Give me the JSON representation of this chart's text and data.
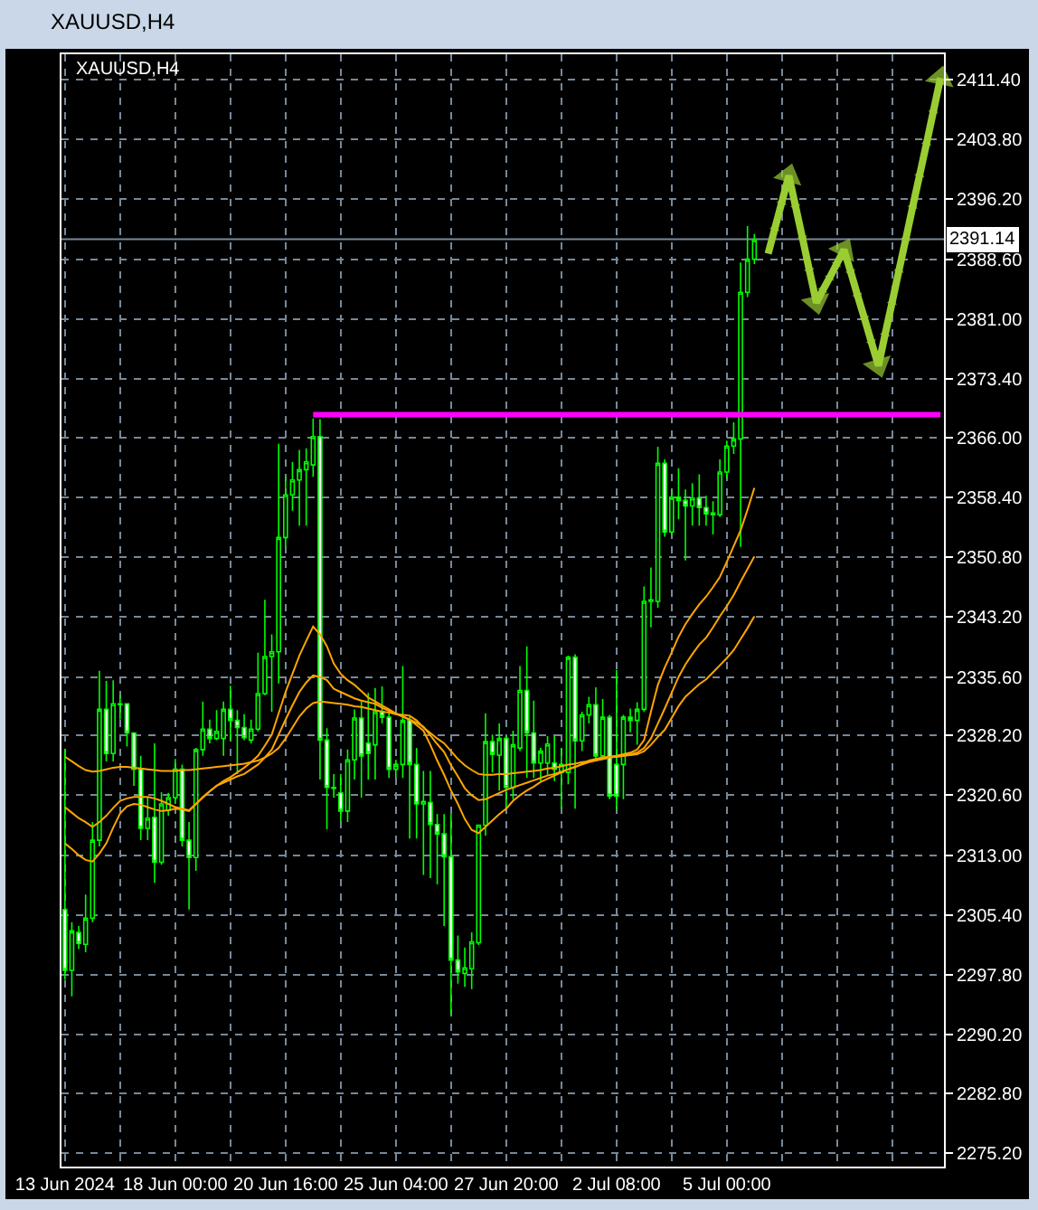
{
  "chart_data": {
    "type": "candlestick",
    "title": "XAUUSD,H4",
    "subtitle": "XAUUSD,H4",
    "categories": [
      "13 Jun 2024",
      null,
      null,
      null,
      null,
      null,
      null,
      null,
      null,
      null,
      null,
      null,
      null,
      null,
      null,
      null,
      "18 Jun 00:00",
      null,
      null,
      null,
      null,
      null,
      null,
      null,
      null,
      null,
      null,
      null,
      null,
      null,
      null,
      null,
      "20 Jun 16:00",
      null,
      null,
      null,
      null,
      null,
      null,
      null,
      null,
      null,
      null,
      null,
      null,
      null,
      null,
      null,
      "25 Jun 04:00",
      null,
      null,
      null,
      null,
      null,
      null,
      null,
      null,
      null,
      null,
      null,
      null,
      null,
      null,
      null,
      "27 Jun 20:00",
      null,
      null,
      null,
      null,
      null,
      null,
      null,
      null,
      null,
      null,
      null,
      null,
      null,
      null,
      null,
      "2 Jul 08:00",
      null,
      null,
      null,
      null,
      null,
      null,
      null,
      null,
      null,
      null,
      null,
      null,
      null,
      null,
      null,
      "5 Jul 00:00",
      null,
      null,
      null,
      null,
      null,
      null,
      null,
      null,
      null,
      null,
      null,
      null,
      null,
      null,
      null,
      null,
      null,
      null,
      null,
      null,
      null,
      null,
      null,
      null,
      null,
      null,
      null,
      null,
      null,
      null,
      null
    ],
    "ohlc": [
      [
        2306.1,
        2326.4,
        2297.2,
        2298.4
      ],
      [
        2298.4,
        2304.5,
        2295.1,
        2303.4
      ],
      [
        2303.2,
        2304.0,
        2301.1,
        2301.8
      ],
      [
        2301.7,
        2308.0,
        2300.7,
        2305.0
      ],
      [
        2305.0,
        2317.2,
        2304.5,
        2314.9
      ],
      [
        2314.9,
        2336.4,
        2314.1,
        2331.5
      ],
      [
        2331.5,
        2335.1,
        2324.9,
        2325.9
      ],
      [
        2325.9,
        2335.2,
        2324.9,
        2332.2
      ],
      [
        2332.1,
        2333.3,
        2330.2,
        2332.2
      ],
      [
        2332.2,
        2332.3,
        2326.8,
        2328.5
      ],
      [
        2328.5,
        2328.6,
        2321.8,
        2323.9
      ],
      [
        2323.9,
        2325.6,
        2314.9,
        2316.4
      ],
      [
        2316.4,
        2320.3,
        2314.9,
        2317.7
      ],
      [
        2317.8,
        2327.2,
        2309.5,
        2312.1
      ],
      [
        2312.1,
        2321.0,
        2311.8,
        2319.5
      ],
      [
        2318.7,
        2320.9,
        2318.0,
        2320.3
      ],
      [
        2320.3,
        2325.2,
        2319.5,
        2323.9
      ],
      [
        2323.9,
        2324.5,
        2314.1,
        2314.9
      ],
      [
        2314.9,
        2317.2,
        2306.1,
        2312.7
      ],
      [
        2312.7,
        2326.6,
        2311.0,
        2326.4
      ],
      [
        2326.4,
        2332.5,
        2325.6,
        2329.0
      ],
      [
        2329.0,
        2330.2,
        2327.2,
        2327.8
      ],
      [
        2327.8,
        2331.4,
        2327.6,
        2328.7
      ],
      [
        2327.8,
        2332.5,
        2325.6,
        2331.5
      ],
      [
        2331.5,
        2334.5,
        2327.6,
        2330.1
      ],
      [
        2330.1,
        2331.4,
        2323.3,
        2329.2
      ],
      [
        2329.2,
        2330.9,
        2327.6,
        2327.9
      ],
      [
        2327.6,
        2330.2,
        2327.2,
        2329.0
      ],
      [
        2329.0,
        2338.7,
        2328.7,
        2333.5
      ],
      [
        2333.5,
        2345.4,
        2333.3,
        2338.2
      ],
      [
        2338.2,
        2341.0,
        2331.2,
        2338.8
      ],
      [
        2338.8,
        2365.2,
        2334.8,
        2353.3
      ],
      [
        2353.3,
        2361.0,
        2352.1,
        2358.7
      ],
      [
        2358.7,
        2362.9,
        2356.7,
        2360.6
      ],
      [
        2360.6,
        2364.4,
        2354.8,
        2361.9
      ],
      [
        2361.9,
        2364.6,
        2354.8,
        2362.9
      ],
      [
        2362.5,
        2368.4,
        2361.0,
        2366.1
      ],
      [
        2366.1,
        2368.3,
        2322.6,
        2327.6
      ],
      [
        2327.6,
        2329.1,
        2316.3,
        2321.6
      ],
      [
        2321.5,
        2323.3,
        2320.3,
        2321.6
      ],
      [
        2320.9,
        2323.3,
        2317.2,
        2318.6
      ],
      [
        2318.6,
        2326.4,
        2317.2,
        2325.1
      ],
      [
        2325.1,
        2331.5,
        2322.6,
        2330.4
      ],
      [
        2330.4,
        2332.5,
        2320.3,
        2325.6
      ],
      [
        2327.2,
        2333.6,
        2322.6,
        2325.9
      ],
      [
        2327.0,
        2334.2,
        2322.6,
        2331.2
      ],
      [
        2331.2,
        2334.4,
        2329.7,
        2330.5
      ],
      [
        2330.5,
        2331.1,
        2322.8,
        2323.9
      ],
      [
        2323.9,
        2325.1,
        2322.8,
        2324.5
      ],
      [
        2324.5,
        2337.0,
        2322.8,
        2330.1
      ],
      [
        2330.1,
        2330.6,
        2315.1,
        2324.5
      ],
      [
        2324.5,
        2326.6,
        2315.1,
        2319.5
      ],
      [
        2319.5,
        2323.7,
        2310.5,
        2319.8
      ],
      [
        2319.7,
        2323.7,
        2310.1,
        2316.9
      ],
      [
        2316.9,
        2318.2,
        2309.3,
        2315.7
      ],
      [
        2315.7,
        2318.2,
        2304.0,
        2312.8
      ],
      [
        2312.8,
        2318.2,
        2292.8,
        2299.7
      ],
      [
        2299.7,
        2302.8,
        2296.7,
        2298.2
      ],
      [
        2298.0,
        2301.3,
        2296.3,
        2298.7
      ],
      [
        2298.6,
        2303.2,
        2296.0,
        2302.0
      ],
      [
        2301.9,
        2316.9,
        2301.6,
        2316.8
      ],
      [
        2316.8,
        2331.0,
        2315.5,
        2327.4
      ],
      [
        2327.4,
        2328.3,
        2323.5,
        2325.8
      ],
      [
        2325.7,
        2329.7,
        2321.2,
        2327.8
      ],
      [
        2327.8,
        2328.1,
        2318.9,
        2321.6
      ],
      [
        2321.6,
        2328.8,
        2320.1,
        2327.0
      ],
      [
        2326.6,
        2337.0,
        2326.2,
        2333.9
      ],
      [
        2333.9,
        2339.5,
        2322.8,
        2328.5
      ],
      [
        2328.5,
        2332.6,
        2322.8,
        2324.7
      ],
      [
        2324.7,
        2326.6,
        2322.4,
        2326.2
      ],
      [
        2324.7,
        2328.1,
        2323.2,
        2327.1
      ],
      [
        2324.7,
        2328.1,
        2322.4,
        2323.9
      ],
      [
        2323.5,
        2326.6,
        2318.9,
        2324.5
      ],
      [
        2323.5,
        2338.3,
        2322.0,
        2338.1
      ],
      [
        2338.1,
        2338.5,
        2318.9,
        2327.5
      ],
      [
        2327.5,
        2331.2,
        2326.2,
        2330.8
      ],
      [
        2330.8,
        2333.1,
        2329.7,
        2332.1
      ],
      [
        2332.1,
        2334.3,
        2325.1,
        2325.6
      ],
      [
        2325.6,
        2332.8,
        2325.1,
        2330.5
      ],
      [
        2330.5,
        2330.8,
        2320.1,
        2320.5
      ],
      [
        2324.5,
        2336.5,
        2318.8,
        2320.5
      ],
      [
        2324.5,
        2330.8,
        2320.1,
        2330.5
      ],
      [
        2330.5,
        2331.6,
        2328.6,
        2330.1
      ],
      [
        2330.1,
        2332.4,
        2327.0,
        2331.5
      ],
      [
        2331.5,
        2347.1,
        2331.2,
        2345.2
      ],
      [
        2345.2,
        2349.5,
        2341.9,
        2345.4
      ],
      [
        2345.2,
        2364.8,
        2344.4,
        2362.7
      ],
      [
        2362.7,
        2363.2,
        2353.4,
        2354.0
      ],
      [
        2354.0,
        2359.4,
        2353.6,
        2358.4
      ],
      [
        2358.4,
        2362.1,
        2355.6,
        2358.0
      ],
      [
        2358.0,
        2359.4,
        2350.4,
        2357.3
      ],
      [
        2357.3,
        2360.2,
        2354.8,
        2358.3
      ],
      [
        2358.3,
        2361.3,
        2354.8,
        2357.1
      ],
      [
        2357.1,
        2358.6,
        2354.8,
        2356.3
      ],
      [
        2356.4,
        2357.9,
        2353.7,
        2356.2
      ],
      [
        2356.2,
        2363.2,
        2355.9,
        2361.6
      ],
      [
        2361.6,
        2365.6,
        2360.8,
        2364.9
      ],
      [
        2364.9,
        2367.9,
        2363.9,
        2365.8
      ],
      [
        2365.8,
        2388.2,
        2352.1,
        2384.4
      ],
      [
        2384.4,
        2392.8,
        2383.8,
        2388.6
      ],
      [
        2388.6,
        2391.8,
        2388.0,
        2391.1
      ],
      null,
      null,
      null,
      null,
      null,
      null,
      null,
      null,
      null,
      null,
      null,
      null,
      null,
      null,
      null,
      null,
      null,
      null,
      null,
      null,
      null,
      null,
      null,
      null,
      null,
      null,
      null
    ],
    "color": "#00ff00",
    "colors": [
      "#ffffff",
      "#000000",
      "#ffffff",
      "#000000",
      "#000000",
      "#000000",
      "#ffffff",
      "#000000",
      "#00ff00",
      "#ffffff",
      "#ffffff",
      "#ffffff",
      "#000000",
      "#ffffff",
      "#000000",
      "#000000",
      "#000000",
      "#ffffff",
      "#ffffff",
      "#000000",
      "#000000",
      "#ffffff",
      "#000000",
      "#000000",
      "#ffffff",
      "#ffffff",
      "#ffffff",
      "#000000",
      "#000000",
      "#000000",
      "#00ff00",
      "#000000",
      "#000000",
      "#000000",
      "#000000",
      "#000000",
      "#000000",
      "#ffffff",
      "#ffffff",
      "#00ff00",
      "#ffffff",
      "#000000",
      "#000000",
      "#ffffff",
      "#ffffff",
      "#000000",
      "#00ff00",
      "#ffffff",
      "#00ff00",
      "#000000",
      "#ffffff",
      "#ffffff",
      "#00ff00",
      "#ffffff",
      "#ffffff",
      "#ffffff",
      "#ffffff",
      "#ffffff",
      "#00ff00",
      "#000000",
      "#000000",
      "#000000",
      "#ffffff",
      "#000000",
      "#ffffff",
      "#000000",
      "#000000",
      "#ffffff",
      "#ffffff",
      "#000000",
      "#000000",
      "#ffffff",
      "#000000",
      "#000000",
      "#ffffff",
      "#000000",
      "#000000",
      "#ffffff",
      "#000000",
      "#ffffff",
      "#ffffff",
      "#000000",
      "#00ff00",
      "#000000",
      "#000000",
      "#00ff00",
      "#000000",
      "#ffffff",
      "#000000",
      "#00ff00",
      "#00ff00",
      "#000000",
      "#ffffff",
      "#ffffff",
      "#00ff00",
      "#000000",
      "#000000",
      "#000000",
      "#000000",
      "#000000",
      "#000000",
      null,
      null,
      null,
      null,
      null,
      null,
      null,
      null,
      null,
      null,
      null,
      null,
      null,
      null,
      null,
      null,
      null,
      null,
      null,
      null,
      null,
      null,
      null,
      null,
      null,
      null,
      null
    ],
    "series": [
      {
        "type": "line",
        "color": "#ffa500",
        "values": [
          2314.5,
          2313.8,
          2313.0,
          2312.4,
          2312.2,
          2313.2,
          2314.5,
          2316.5,
          2318.3,
          2319.2,
          2319.5,
          2319.4,
          2319.1,
          2318.8,
          2318.6,
          2318.7,
          2318.9,
          2318.8,
          2318.6,
          2319.5,
          2320.4,
          2321.1,
          2321.8,
          2322.4,
          2322.9,
          2323.5,
          2324.1,
          2324.8,
          2325.6,
          2326.9,
          2328.3,
          2331.0,
          2333.7,
          2336.0,
          2338.3,
          2340.2,
          2342.0,
          2341.0,
          2339.5,
          2337.3,
          2336.0,
          2335.2,
          2334.6,
          2333.8,
          2333.0,
          2332.5,
          2332.0,
          2331.5,
          2331.0,
          2330.6,
          2330.2,
          2329.5,
          2328.8,
          2327.0,
          2325.0,
          2323.2,
          2321.2,
          2319.5,
          2317.6,
          2316.2,
          2315.8,
          2316.6,
          2317.4,
          2318.2,
          2318.9,
          2319.9,
          2320.6,
          2321.2,
          2321.7,
          2322.3,
          2322.7,
          2323.1,
          2323.5,
          2323.9,
          2324.2,
          2324.6,
          2325.0,
          2325.2,
          2325.4,
          2325.5,
          2325.6,
          2325.8,
          2326.0,
          2326.4,
          2327.6,
          2331.2,
          2334.6,
          2336.8,
          2338.7,
          2340.7,
          2342.3,
          2343.6,
          2344.8,
          2345.8,
          2347.0,
          2348.3,
          2350.2,
          2352.2,
          2354.2,
          2356.8,
          2359.6,
          null,
          null,
          null,
          null,
          null,
          null,
          null,
          null,
          null,
          null,
          null,
          null,
          null,
          null,
          null,
          null,
          null,
          null,
          null,
          null,
          null,
          null,
          null,
          null,
          null,
          null,
          null
        ]
      },
      {
        "type": "line",
        "color": "#ffa500",
        "values": [
          2319.1,
          2318.4,
          2317.7,
          2317.2,
          2316.6,
          2317.2,
          2318.0,
          2319.0,
          2319.9,
          2320.2,
          2320.4,
          2320.4,
          2320.4,
          2320.2,
          2319.9,
          2319.5,
          2319.1,
          2318.9,
          2318.7,
          2319.5,
          2320.3,
          2321.1,
          2321.8,
          2322.2,
          2322.6,
          2323.0,
          2323.3,
          2323.9,
          2324.5,
          2325.4,
          2326.4,
          2328.3,
          2330.2,
          2332.0,
          2333.7,
          2334.9,
          2335.8,
          2335.6,
          2335.2,
          2334.1,
          2333.7,
          2333.3,
          2332.9,
          2332.6,
          2332.4,
          2332.2,
          2331.7,
          2331.3,
          2330.9,
          2330.6,
          2330.2,
          2329.8,
          2329.3,
          2328.2,
          2327.1,
          2326.1,
          2324.4,
          2323.0,
          2321.5,
          2320.6,
          2320.0,
          2320.1,
          2320.5,
          2320.9,
          2321.3,
          2321.6,
          2321.9,
          2322.2,
          2322.5,
          2322.8,
          2323.1,
          2323.3,
          2323.6,
          2323.9,
          2324.2,
          2324.5,
          2324.8,
          2325.0,
          2325.2,
          2325.4,
          2325.5,
          2325.6,
          2325.8,
          2326.0,
          2326.6,
          2327.8,
          2329.7,
          2331.6,
          2333.6,
          2335.6,
          2337.2,
          2338.5,
          2339.7,
          2340.6,
          2341.9,
          2343.3,
          2344.6,
          2346.0,
          2347.7,
          2349.3,
          2350.9,
          null,
          null,
          null,
          null,
          null,
          null,
          null,
          null,
          null,
          null,
          null,
          null,
          null,
          null,
          null,
          null,
          null,
          null,
          null,
          null,
          null,
          null,
          null,
          null,
          null,
          null,
          null
        ]
      },
      {
        "type": "line",
        "color": "#ffa500",
        "values": [
          2325.5,
          2324.9,
          2324.3,
          2323.8,
          2323.6,
          2323.7,
          2323.9,
          2324.1,
          2324.2,
          2324.2,
          2324.1,
          2324.0,
          2323.9,
          2323.8,
          2323.7,
          2323.7,
          2323.7,
          2323.8,
          2323.8,
          2323.9,
          2324.0,
          2324.1,
          2324.2,
          2324.3,
          2324.4,
          2324.5,
          2324.6,
          2324.8,
          2325.0,
          2325.4,
          2325.9,
          2326.6,
          2327.8,
          2329.2,
          2330.6,
          2331.6,
          2332.3,
          2332.5,
          2332.4,
          2332.3,
          2332.2,
          2332.1,
          2331.9,
          2331.8,
          2331.6,
          2331.4,
          2331.2,
          2331.1,
          2330.9,
          2330.8,
          2330.7,
          2330.1,
          2329.2,
          2328.5,
          2327.8,
          2327.2,
          2326.2,
          2325.2,
          2324.4,
          2323.8,
          2323.3,
          2323.2,
          2323.2,
          2323.3,
          2323.3,
          2323.4,
          2323.5,
          2323.6,
          2323.7,
          2323.8,
          2324.0,
          2324.1,
          2324.3,
          2324.5,
          2324.6,
          2324.8,
          2324.9,
          2325.1,
          2325.2,
          2325.4,
          2325.5,
          2325.6,
          2325.7,
          2325.8,
          2326.2,
          2327.0,
          2328.0,
          2328.9,
          2330.4,
          2331.9,
          2333.1,
          2333.9,
          2334.7,
          2335.3,
          2336.2,
          2337.1,
          2338.0,
          2339.0,
          2340.4,
          2341.8,
          2343.3,
          null,
          null,
          null,
          null,
          null,
          null,
          null,
          null,
          null,
          null,
          null,
          null,
          null,
          null,
          null,
          null,
          null,
          null,
          null,
          null,
          null,
          null,
          null,
          null,
          null,
          null,
          null
        ]
      },
      {
        "type": "line",
        "color": "#ff00ff",
        "values": [
          null,
          null,
          null,
          null,
          null,
          null,
          null,
          null,
          null,
          null,
          null,
          null,
          null,
          null,
          null,
          null,
          null,
          null,
          null,
          null,
          null,
          null,
          null,
          null,
          null,
          null,
          null,
          null,
          null,
          null,
          null,
          null,
          null,
          null,
          null,
          null,
          2368.9,
          2368.9,
          2368.9,
          2368.9,
          2368.9,
          2368.9,
          2368.9,
          2368.9,
          2368.9,
          2368.9,
          2368.9,
          2368.9,
          2368.9,
          2368.9,
          2368.9,
          2368.9,
          2368.9,
          2368.9,
          2368.9,
          2368.9,
          2368.9,
          2368.9,
          2368.9,
          2368.9,
          2368.9,
          2368.9,
          2368.9,
          2368.9,
          2368.9,
          2368.9,
          2368.9,
          2368.9,
          2368.9,
          2368.9,
          2368.9,
          2368.9,
          2368.9,
          2368.9,
          2368.9,
          2368.9,
          2368.9,
          2368.9,
          2368.9,
          2368.9,
          2368.9,
          2368.9,
          2368.9,
          2368.9,
          2368.9,
          2368.9,
          2368.9,
          2368.9,
          2368.9,
          2368.9,
          2368.9,
          2368.9,
          2368.9,
          2368.9,
          2368.9,
          2368.9,
          2368.9,
          2368.9,
          2368.9,
          2368.9,
          2368.9,
          2368.9,
          2368.9,
          2368.9,
          2368.9,
          2368.9,
          2368.9,
          2368.9,
          2368.9,
          2368.9,
          2368.9,
          2368.9,
          2368.9,
          2368.9,
          2368.9,
          2368.9,
          2368.9,
          2368.9,
          2368.9,
          2368.9,
          2368.9,
          2368.9,
          2368.9,
          2368.9,
          2368.9,
          2368.9,
          2368.9,
          2368.9
        ]
      },
      {
        "type": "line",
        "color": "#9acd32",
        "marker": "triangle",
        "values": [
          null,
          null,
          null,
          null,
          null,
          null,
          null,
          null,
          null,
          null,
          null,
          null,
          null,
          null,
          null,
          null,
          null,
          null,
          null,
          null,
          null,
          null,
          null,
          null,
          null,
          null,
          null,
          null,
          null,
          null,
          null,
          null,
          null,
          null,
          null,
          null,
          null,
          null,
          null,
          null,
          null,
          null,
          null,
          null,
          null,
          null,
          null,
          null,
          null,
          null,
          null,
          null,
          null,
          null,
          null,
          null,
          null,
          null,
          null,
          null,
          null,
          null,
          null,
          null,
          null,
          null,
          null,
          null,
          null,
          null,
          null,
          null,
          null,
          null,
          null,
          null,
          null,
          null,
          null,
          null,
          null,
          null,
          null,
          null,
          null,
          null,
          null,
          null,
          null,
          null,
          null,
          null,
          null,
          null,
          null,
          null,
          null,
          null,
          null,
          null,
          null,
          null,
          2389.3,
          2392.6,
          2395.9,
          2399.2,
          2395.2,
          2391.2,
          2387.1,
          2383.1,
          2384.8,
          2386.4,
          2388.1,
          2389.8,
          2386.9,
          2383.9,
          2381.0,
          2378.0,
          2375.1,
          2379.2,
          2383.2,
          2387.3,
          2391.3,
          2395.4,
          2399.4,
          2403.4,
          2407.5,
          2411.6
        ]
      }
    ],
    "ylim": [
      2273.5,
      2414.6
    ],
    "yticks": [
      {
        "value": 2275.2,
        "label": "2275.20"
      },
      {
        "value": 2282.8,
        "label": "2282.80"
      },
      {
        "value": 2290.2,
        "label": "2290.20"
      },
      {
        "value": 2297.8,
        "label": "2297.80"
      },
      {
        "value": 2305.4,
        "label": "2305.40"
      },
      {
        "value": 2313.0,
        "label": "2313.00"
      },
      {
        "value": 2320.6,
        "label": "2320.60"
      },
      {
        "value": 2328.2,
        "label": "2328.20"
      },
      {
        "value": 2335.6,
        "label": "2335.60"
      },
      {
        "value": 2343.2,
        "label": "2343.20"
      },
      {
        "value": 2350.8,
        "label": "2350.80"
      },
      {
        "value": 2358.4,
        "label": "2358.40"
      },
      {
        "value": 2366.0,
        "label": "2366.00"
      },
      {
        "value": 2373.4,
        "label": "2373.40"
      },
      {
        "value": 2381.0,
        "label": "2381.00"
      },
      {
        "value": 2388.6,
        "label": "2388.60"
      },
      {
        "value": 2396.2,
        "label": "2396.20"
      },
      {
        "value": 2403.8,
        "label": "2403.80"
      },
      {
        "value": 2411.4,
        "label": "2411.40"
      }
    ],
    "ref_lines": [
      {
        "axis": "y",
        "value": 2391.14,
        "label": "2391.14",
        "color": "#778899"
      }
    ],
    "grid": true
  }
}
